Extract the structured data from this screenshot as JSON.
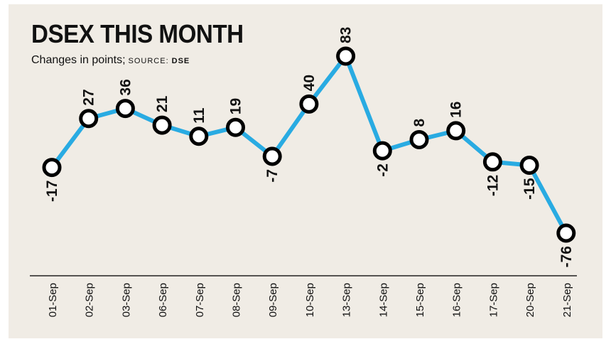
{
  "title": "DSEX THIS MONTH",
  "subtitle": {
    "text": "Changes in points;",
    "source_label": "SOURCE:",
    "source_value": "DSE"
  },
  "colors": {
    "line": "#29abe2",
    "marker_fill": "#ffffff",
    "marker_stroke": "#000000",
    "background": "#f0ece5"
  },
  "chart_data": {
    "type": "line",
    "title": "DSEX THIS MONTH",
    "subtitle": "Changes in points",
    "categories": [
      "01-Sep",
      "02-Sep",
      "03-Sep",
      "06-Sep",
      "07-Sep",
      "08-Sep",
      "09-Sep",
      "10-Sep",
      "13-Sep",
      "14-Sep",
      "15-Sep",
      "16-Sep",
      "17-Sep",
      "20-Sep",
      "21-Sep"
    ],
    "values": [
      -17,
      27,
      36,
      21,
      11,
      19,
      -7,
      40,
      83,
      -2,
      8,
      16,
      -12,
      -15,
      -76
    ],
    "value_labels": [
      "-17",
      "27",
      "36",
      "21",
      "11",
      "19",
      "-7",
      "40",
      "83",
      "-2",
      "8",
      "16",
      "-12",
      "-15",
      "-76"
    ],
    "ylim": [
      -90,
      95
    ],
    "grid": false,
    "xlabel": "",
    "ylabel": ""
  }
}
